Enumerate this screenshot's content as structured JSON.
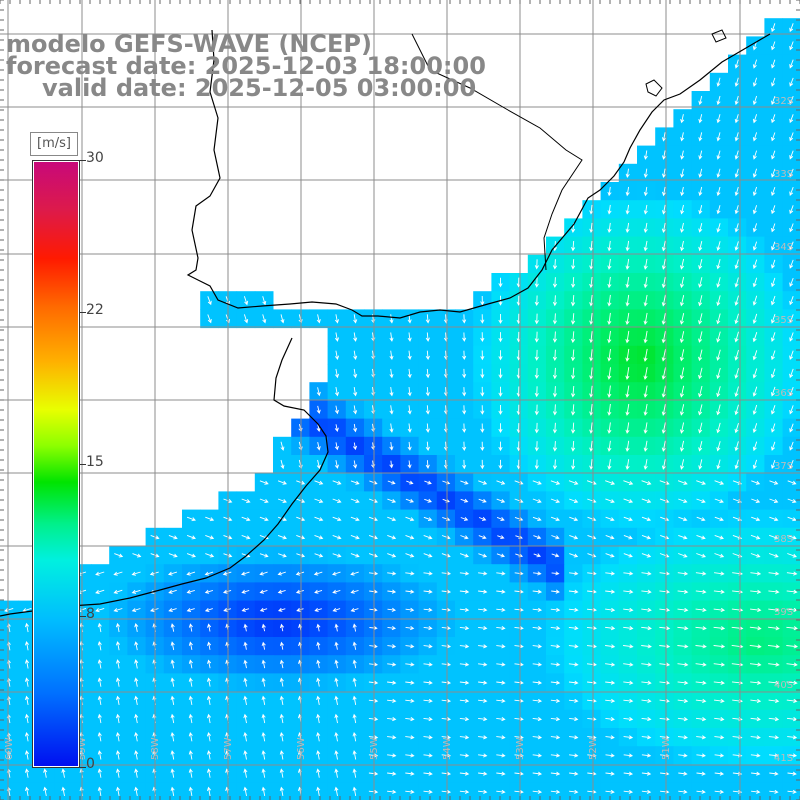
{
  "title": {
    "model": "modelo GEFS-WAVE (NCEP)",
    "forecast": "forecast date: 2025-12-03 18:00:00",
    "valid": "valid date: 2025-12-05 03:00:00"
  },
  "colorbar": {
    "units": "[m/s]",
    "min": 0,
    "max": 30,
    "ticks": [
      "30",
      "22",
      "15",
      "8",
      "0"
    ],
    "stops": [
      "#c8097a",
      "#ff1a00",
      "#ffb000",
      "#e8ff00",
      "#00e400",
      "#00f0e0",
      "#00bcff",
      "#0070ff",
      "#0010f0"
    ]
  },
  "lat_labels": [
    "32S",
    "33S",
    "34S",
    "35S",
    "36S",
    "37S",
    "38S",
    "39S",
    "40S",
    "41S"
  ],
  "lon_labels": [
    "60W",
    "59W",
    "58W",
    "57W",
    "56W",
    "55W",
    "54W",
    "53W",
    "52W",
    "51W"
  ],
  "colors": {
    "land": "#ffffff",
    "coast": "#000000",
    "grid": "#8c8c8c",
    "arrow": "#ffffff",
    "title": "#888888"
  }
}
